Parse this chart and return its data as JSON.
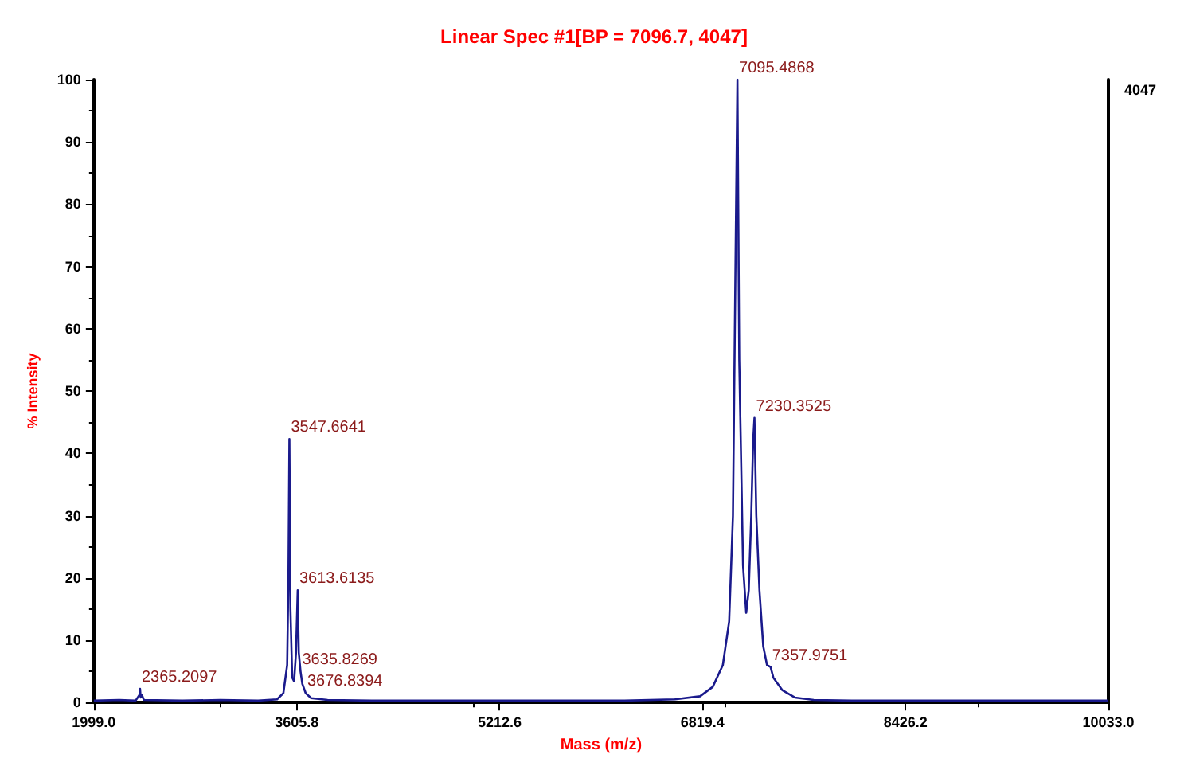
{
  "chart_data": {
    "type": "line",
    "title": "Linear Spec #1[BP = 7096.7, 4047]",
    "xlabel": "Mass (m/z)",
    "ylabel": "% Intensity",
    "x": [
      1999,
      2200,
      2330,
      2360,
      2365.2,
      2370,
      2380,
      2395,
      2700,
      3000,
      3300,
      3450,
      3500,
      3530,
      3540,
      3547.7,
      3556,
      3570,
      3585,
      3600,
      3613.6,
      3622,
      3635.8,
      3650,
      3676.8,
      3720,
      3850,
      4200,
      5000,
      5600,
      6200,
      6600,
      6800,
      6900,
      6980,
      7030,
      7060,
      7080,
      7095.5,
      7110,
      7140,
      7165,
      7185,
      7205,
      7220,
      7230.4,
      7245,
      7270,
      7300,
      7330,
      7357.9,
      7380,
      7450,
      7550,
      7700,
      8000,
      9000,
      10033
    ],
    "series": [
      {
        "color": "#1a1a8c",
        "values": [
          0.3,
          0.4,
          0.3,
          1.2,
          2.2,
          0.8,
          1.2,
          0.4,
          0.3,
          0.4,
          0.3,
          0.5,
          1.5,
          6,
          20,
          42.3,
          15,
          4,
          3.4,
          8,
          18,
          8,
          5,
          3,
          1.5,
          0.7,
          0.4,
          0.3,
          0.3,
          0.3,
          0.3,
          0.5,
          1,
          2.5,
          6,
          13,
          30,
          70,
          100,
          55,
          22,
          14.4,
          18,
          30,
          42,
          45.7,
          30,
          18,
          9,
          6,
          5.7,
          4,
          2,
          0.8,
          0.4,
          0.3,
          0.3,
          0.3
        ]
      }
    ],
    "xlim": [
      1999,
      10033
    ],
    "xticks": [
      {
        "value": 1999,
        "label": "1999.0"
      },
      {
        "value": 3605.8,
        "label": "3605.8"
      },
      {
        "value": 5212.6,
        "label": "5212.6"
      },
      {
        "value": 6819.4,
        "label": "6819.4"
      },
      {
        "value": 8426.2,
        "label": "8426.2"
      },
      {
        "value": 10033,
        "label": "10033.0"
      }
    ],
    "ylim": [
      0,
      100
    ],
    "yticks": [
      0,
      10,
      20,
      30,
      40,
      50,
      60,
      70,
      80,
      90,
      100
    ],
    "grid": false,
    "marker": "none",
    "line_style": "solid",
    "annotations": [
      "4047",
      {
        "text": "2365.2097",
        "x": 2365.2,
        "y": 2.2
      },
      {
        "text": "3547.6641",
        "x": 3547.7,
        "y": 42.3
      },
      {
        "text": "3613.6135",
        "x": 3613.6,
        "y": 18
      },
      {
        "text": "3635.8269",
        "x": 3635.8,
        "y": 5
      },
      {
        "text": "3676.8394",
        "x": 3676.8,
        "y": 1.5
      },
      {
        "text": "7095.4868",
        "x": 7095.5,
        "y": 100
      },
      {
        "text": "7230.3525",
        "x": 7230.4,
        "y": 45.7
      },
      {
        "text": "7357.9751",
        "x": 7357.9,
        "y": 5.7
      }
    ]
  }
}
